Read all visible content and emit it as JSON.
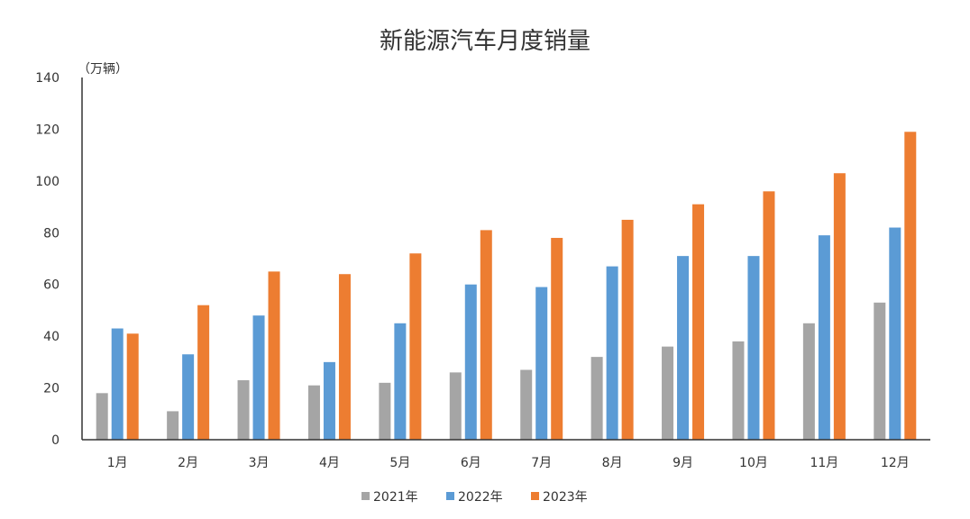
{
  "chart_data": {
    "type": "bar",
    "title": "新能源汽车月度销量",
    "unit_label": "（万辆）",
    "categories": [
      "1月",
      "2月",
      "3月",
      "4月",
      "5月",
      "6月",
      "7月",
      "8月",
      "9月",
      "10月",
      "11月",
      "12月"
    ],
    "series": [
      {
        "name": "2021年",
        "color": "#a5a5a5",
        "values": [
          18,
          11,
          23,
          21,
          22,
          26,
          27,
          32,
          36,
          38,
          45,
          53
        ]
      },
      {
        "name": "2022年",
        "color": "#5b9bd5",
        "values": [
          43,
          33,
          48,
          30,
          45,
          60,
          59,
          67,
          71,
          71,
          79,
          82
        ]
      },
      {
        "name": "2023年",
        "color": "#ed7d31",
        "values": [
          41,
          52,
          65,
          64,
          72,
          81,
          78,
          85,
          91,
          96,
          103,
          119
        ]
      }
    ],
    "ylim": [
      0,
      140
    ],
    "yticks": [
      0,
      20,
      40,
      60,
      80,
      100,
      120,
      140
    ],
    "grid": false,
    "legend_position": "bottom"
  }
}
